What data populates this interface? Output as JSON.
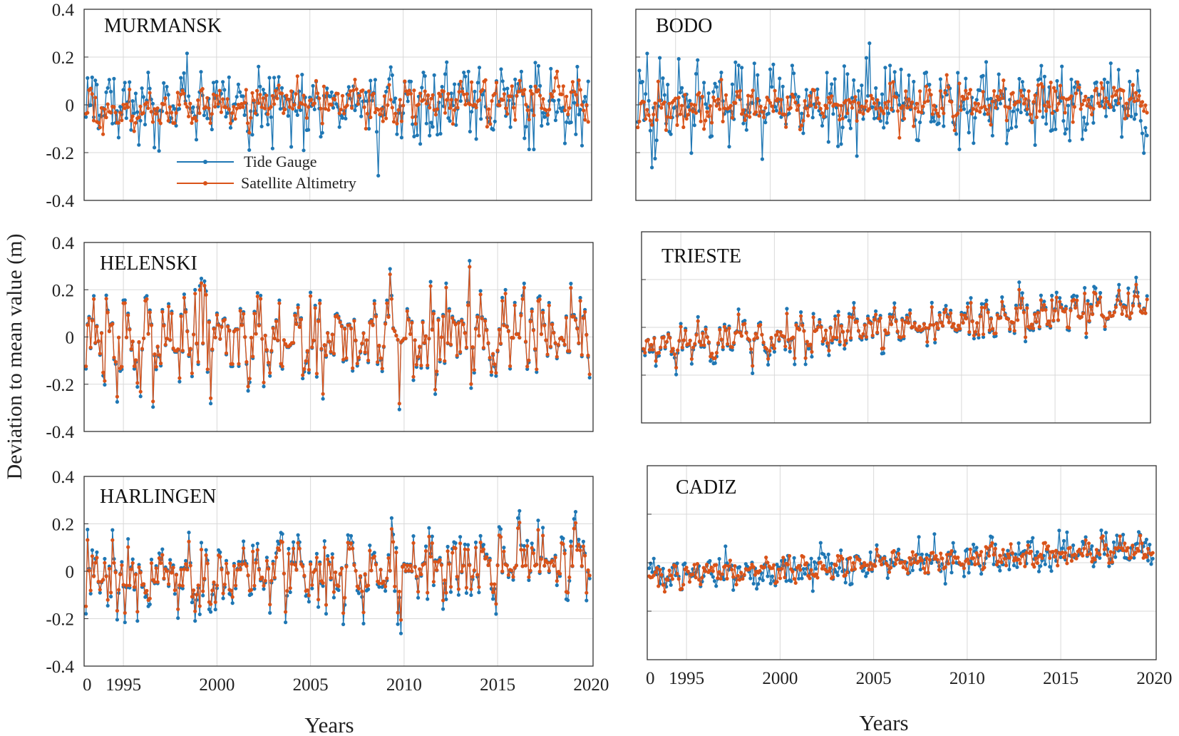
{
  "figure": {
    "ylabel": "Deviation to mean value (m)",
    "xlabel_left": "Years",
    "xlabel_right": "Years",
    "legend": [
      "Tide Gauge",
      "Satellite Altimetry"
    ],
    "colors": {
      "tide_gauge": "#1f77b4",
      "altimetry": "#d95319"
    }
  },
  "chart_data": [
    {
      "type": "line",
      "title": "MURMANSK",
      "col": 0,
      "row": 0,
      "xlim": [
        1992.9,
        2020.1
      ],
      "ylim": [
        -0.4,
        0.4
      ],
      "yticks": [
        "0.4",
        "0.2",
        "0",
        "-0.2",
        "-0.4"
      ],
      "xticks": [],
      "grid": true,
      "series": [
        {
          "name": "Tide Gauge",
          "color": "#1f77b4",
          "std": 0.12,
          "trend": 0.0,
          "seed": 11
        },
        {
          "name": "Satellite Altimetry",
          "color": "#d95319",
          "std": 0.07,
          "trend": 0.03,
          "seed": 12
        }
      ],
      "legend_shown": true
    },
    {
      "type": "line",
      "title": "BODO",
      "col": 1,
      "row": 0,
      "xlim": [
        1992.9,
        2020.1
      ],
      "ylim": [
        -0.4,
        0.4
      ],
      "yticks": [],
      "xticks": [],
      "grid": true,
      "series": [
        {
          "name": "Tide Gauge",
          "color": "#1f77b4",
          "std": 0.13,
          "trend": 0.0,
          "seed": 21
        },
        {
          "name": "Satellite Altimetry",
          "color": "#d95319",
          "std": 0.07,
          "trend": 0.02,
          "seed": 22
        }
      ],
      "legend_shown": false
    },
    {
      "type": "line",
      "title": "HELENSKI",
      "col": 0,
      "row": 1,
      "xlim": [
        1992.9,
        2020.1
      ],
      "ylim": [
        -0.4,
        0.4
      ],
      "yticks": [
        "0.4",
        "0.2",
        "0",
        "-0.2",
        "-0.4"
      ],
      "xticks": [],
      "grid": true,
      "series": [
        {
          "name": "Tide Gauge",
          "color": "#1f77b4",
          "std": 0.17,
          "trend": 0.02,
          "seed": 31
        },
        {
          "name": "Satellite Altimetry",
          "color": "#d95319",
          "std": 0.17,
          "trend": 0.02,
          "seed": 31
        }
      ],
      "legend_shown": false
    },
    {
      "type": "line",
      "title": "TRIESTE",
      "col": 1,
      "row": 1,
      "xlim": [
        1992.9,
        2020.1
      ],
      "ylim": [
        -0.4,
        0.4
      ],
      "yticks": [],
      "xticks": [],
      "grid": true,
      "series": [
        {
          "name": "Tide Gauge",
          "color": "#1f77b4",
          "std": 0.08,
          "trend": 0.1,
          "seed": 41
        },
        {
          "name": "Satellite Altimetry",
          "color": "#d95319",
          "std": 0.07,
          "trend": 0.1,
          "seed": 41
        }
      ],
      "legend_shown": false
    },
    {
      "type": "line",
      "title": "HARLINGEN",
      "col": 0,
      "row": 2,
      "xlim": [
        1992.9,
        2020.1
      ],
      "ylim": [
        -0.4,
        0.4
      ],
      "yticks": [
        "0.4",
        "0.2",
        "0",
        "-0.2",
        "-0.4"
      ],
      "xticks": [
        "0",
        "1995",
        "2000",
        "2005",
        "2010",
        "2015",
        "2020"
      ],
      "grid": true,
      "series": [
        {
          "name": "Tide Gauge",
          "color": "#1f77b4",
          "std": 0.14,
          "trend": 0.05,
          "seed": 51
        },
        {
          "name": "Satellite Altimetry",
          "color": "#d95319",
          "std": 0.12,
          "trend": 0.05,
          "seed": 51
        }
      ],
      "legend_shown": false
    },
    {
      "type": "line",
      "title": "CADIZ",
      "col": 1,
      "row": 2,
      "xlim": [
        1992.9,
        2020.1
      ],
      "ylim": [
        -0.4,
        0.4
      ],
      "yticks": [],
      "xticks": [
        "0",
        "1995",
        "2000",
        "2005",
        "2010",
        "2015",
        "2020"
      ],
      "grid": true,
      "series": [
        {
          "name": "Tide Gauge",
          "color": "#1f77b4",
          "std": 0.06,
          "trend": 0.06,
          "seed": 61
        },
        {
          "name": "Satellite Altimetry",
          "color": "#d95319",
          "std": 0.04,
          "trend": 0.06,
          "seed": 62
        }
      ],
      "legend_shown": false
    }
  ]
}
